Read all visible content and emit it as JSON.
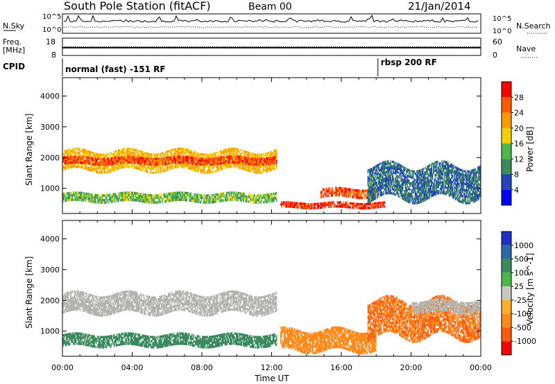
{
  "header": {
    "station": "South Pole Station (fitACF)",
    "beam": "Beam 00",
    "date": "21/Jan/2014"
  },
  "noise_panel": {
    "left_label": "N.Sky",
    "left_ticks": [
      "10^5",
      "10^0"
    ],
    "right_ticks": [
      "10^5",
      "10^0"
    ],
    "right_label": "N.Search"
  },
  "freq_panel": {
    "left_label_1": "Freq.",
    "left_label_2": "[MHz]",
    "left_ticks": [
      "18",
      "8"
    ],
    "right_ticks": [
      "60",
      "0"
    ],
    "right_label": "Nave",
    "freq_level_mhz": 12.5,
    "nave_level": 30
  },
  "cpid": {
    "label": "CPID",
    "modes": [
      {
        "text": "normal (fast) -151 RF",
        "start_hour": 0
      },
      {
        "text": "rbsp 200 RF",
        "start_hour": 18.1
      }
    ]
  },
  "axis": {
    "xlabel": "Time UT",
    "x_ticks": [
      "00:00",
      "04:00",
      "08:00",
      "12:00",
      "16:00",
      "20:00",
      "00:00"
    ],
    "ylabel": "Slant Range [km]",
    "y_ticks": [
      "1000",
      "2000",
      "3000",
      "4000"
    ]
  },
  "colors": {
    "power": [
      "#0000ff",
      "#2246b8",
      "#3c8c5a",
      "#4fb848",
      "#f5d000",
      "#ff9a00",
      "#ff5a00",
      "#ff0000"
    ],
    "velocity": [
      "#1e2fc8",
      "#2a6aa8",
      "#3a8a5e",
      "#48b848",
      "#c8c8c0",
      "#ffb028",
      "#ff8a1a",
      "#ff5a10",
      "#ff0000"
    ],
    "ground_scatter": "#b4b4b0"
  },
  "chart_data": [
    {
      "type": "heatmap",
      "title": "South Pole Station (fitACF) Beam 00",
      "xlabel": "Time UT",
      "ylabel": "Slant Range [km]",
      "xlim": [
        0,
        24
      ],
      "ylim": [
        180,
        4600
      ],
      "colorbar_label": "Power [dB]",
      "colorbar_ticks": [
        "4",
        "8",
        "12",
        "16",
        "20",
        "24",
        "28"
      ],
      "colorbar_range": [
        0,
        32
      ],
      "bands": [
        {
          "t0": 0,
          "t1": 12.3,
          "r_center": 1900,
          "r_width": 650,
          "value": 20
        },
        {
          "t0": 0,
          "t1": 12.3,
          "r_center": 1900,
          "r_width": 250,
          "value": 27
        },
        {
          "t0": 0,
          "t1": 12.3,
          "r_center": 700,
          "r_width": 300,
          "value": 14
        },
        {
          "t0": 12.5,
          "t1": 18.5,
          "r_center": 450,
          "r_width": 200,
          "value": 28
        },
        {
          "t0": 14.8,
          "t1": 18.0,
          "r_center": 850,
          "r_width": 300,
          "value": 26
        },
        {
          "t0": 17.5,
          "t1": 24,
          "r_center": 1200,
          "r_width": 1100,
          "value": 8
        }
      ]
    },
    {
      "type": "heatmap",
      "xlabel": "Time UT",
      "ylabel": "Slant Range [km]",
      "xlim": [
        0,
        24
      ],
      "ylim": [
        180,
        4600
      ],
      "colorbar_label": "Velocity [m s^-1]",
      "colorbar_ticks": [
        "1000",
        "500",
        "100",
        "25",
        "-25",
        "-100",
        "-500",
        "-1000"
      ],
      "bands": [
        {
          "t0": 0,
          "t1": 12.3,
          "r_center": 1900,
          "r_width": 650,
          "value": "ground-scatter"
        },
        {
          "t0": 0,
          "t1": 12.3,
          "r_center": 700,
          "r_width": 400,
          "value": 150
        },
        {
          "t0": 12.5,
          "t1": 18.0,
          "r_center": 700,
          "r_width": 700,
          "value": -300
        },
        {
          "t0": 17.5,
          "t1": 24,
          "r_center": 1400,
          "r_width": 1200,
          "value": -500
        },
        {
          "t0": 20.0,
          "t1": 24,
          "r_center": 1800,
          "r_width": 400,
          "value": "ground-scatter"
        }
      ]
    }
  ]
}
